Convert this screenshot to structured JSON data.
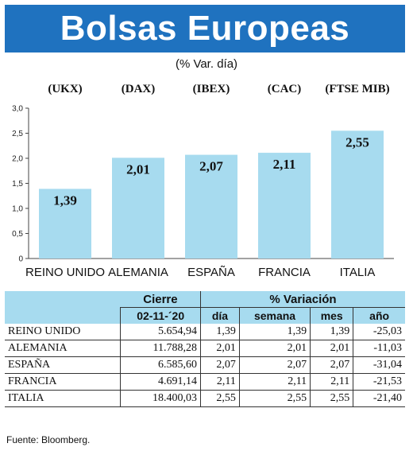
{
  "title": "Bolsas Europeas",
  "subtitle": "(% Var. día)",
  "chart_data": {
    "type": "bar",
    "indices": [
      "(UKX)",
      "(DAX)",
      "(IBEX)",
      "(CAC)",
      "(FTSE MIB)"
    ],
    "categories": [
      "REINO UNIDO",
      "ALEMANIA",
      "ESPAÑA",
      "FRANCIA",
      "ITALIA"
    ],
    "values": [
      1.39,
      2.01,
      2.07,
      2.11,
      2.55
    ],
    "value_labels": [
      "1,39",
      "2,01",
      "2,07",
      "2,11",
      "2,55"
    ],
    "y_ticks": [
      "0",
      "0,5",
      "1,0",
      "1,5",
      "2,0",
      "2,5",
      "3,0"
    ],
    "ylim": [
      0,
      3
    ],
    "bar_color": "#a7dbef"
  },
  "table": {
    "header_cierre": "Cierre",
    "header_variacion": "% Variación",
    "header_date": "02-11-´20",
    "header_dia": "día",
    "header_semana": "semana",
    "header_mes": "mes",
    "header_ano": "año",
    "rows": [
      {
        "country": "REINO UNIDO",
        "cierre": "5.654,94",
        "dia": "1,39",
        "semana": "1,39",
        "mes": "1,39",
        "ano": "-25,03"
      },
      {
        "country": "ALEMANIA",
        "cierre": "11.788,28",
        "dia": "2,01",
        "semana": "2,01",
        "mes": "2,01",
        "ano": "-11,03"
      },
      {
        "country": "ESPAÑA",
        "cierre": "6.585,60",
        "dia": "2,07",
        "semana": "2,07",
        "mes": "2,07",
        "ano": "-31,04"
      },
      {
        "country": "FRANCIA",
        "cierre": "4.691,14",
        "dia": "2,11",
        "semana": "2,11",
        "mes": "2,11",
        "ano": "-21,53"
      },
      {
        "country": "ITALIA",
        "cierre": "18.400,03",
        "dia": "2,55",
        "semana": "2,55",
        "mes": "2,55",
        "ano": "-21,40"
      }
    ]
  },
  "source": "Fuente: Bloomberg."
}
